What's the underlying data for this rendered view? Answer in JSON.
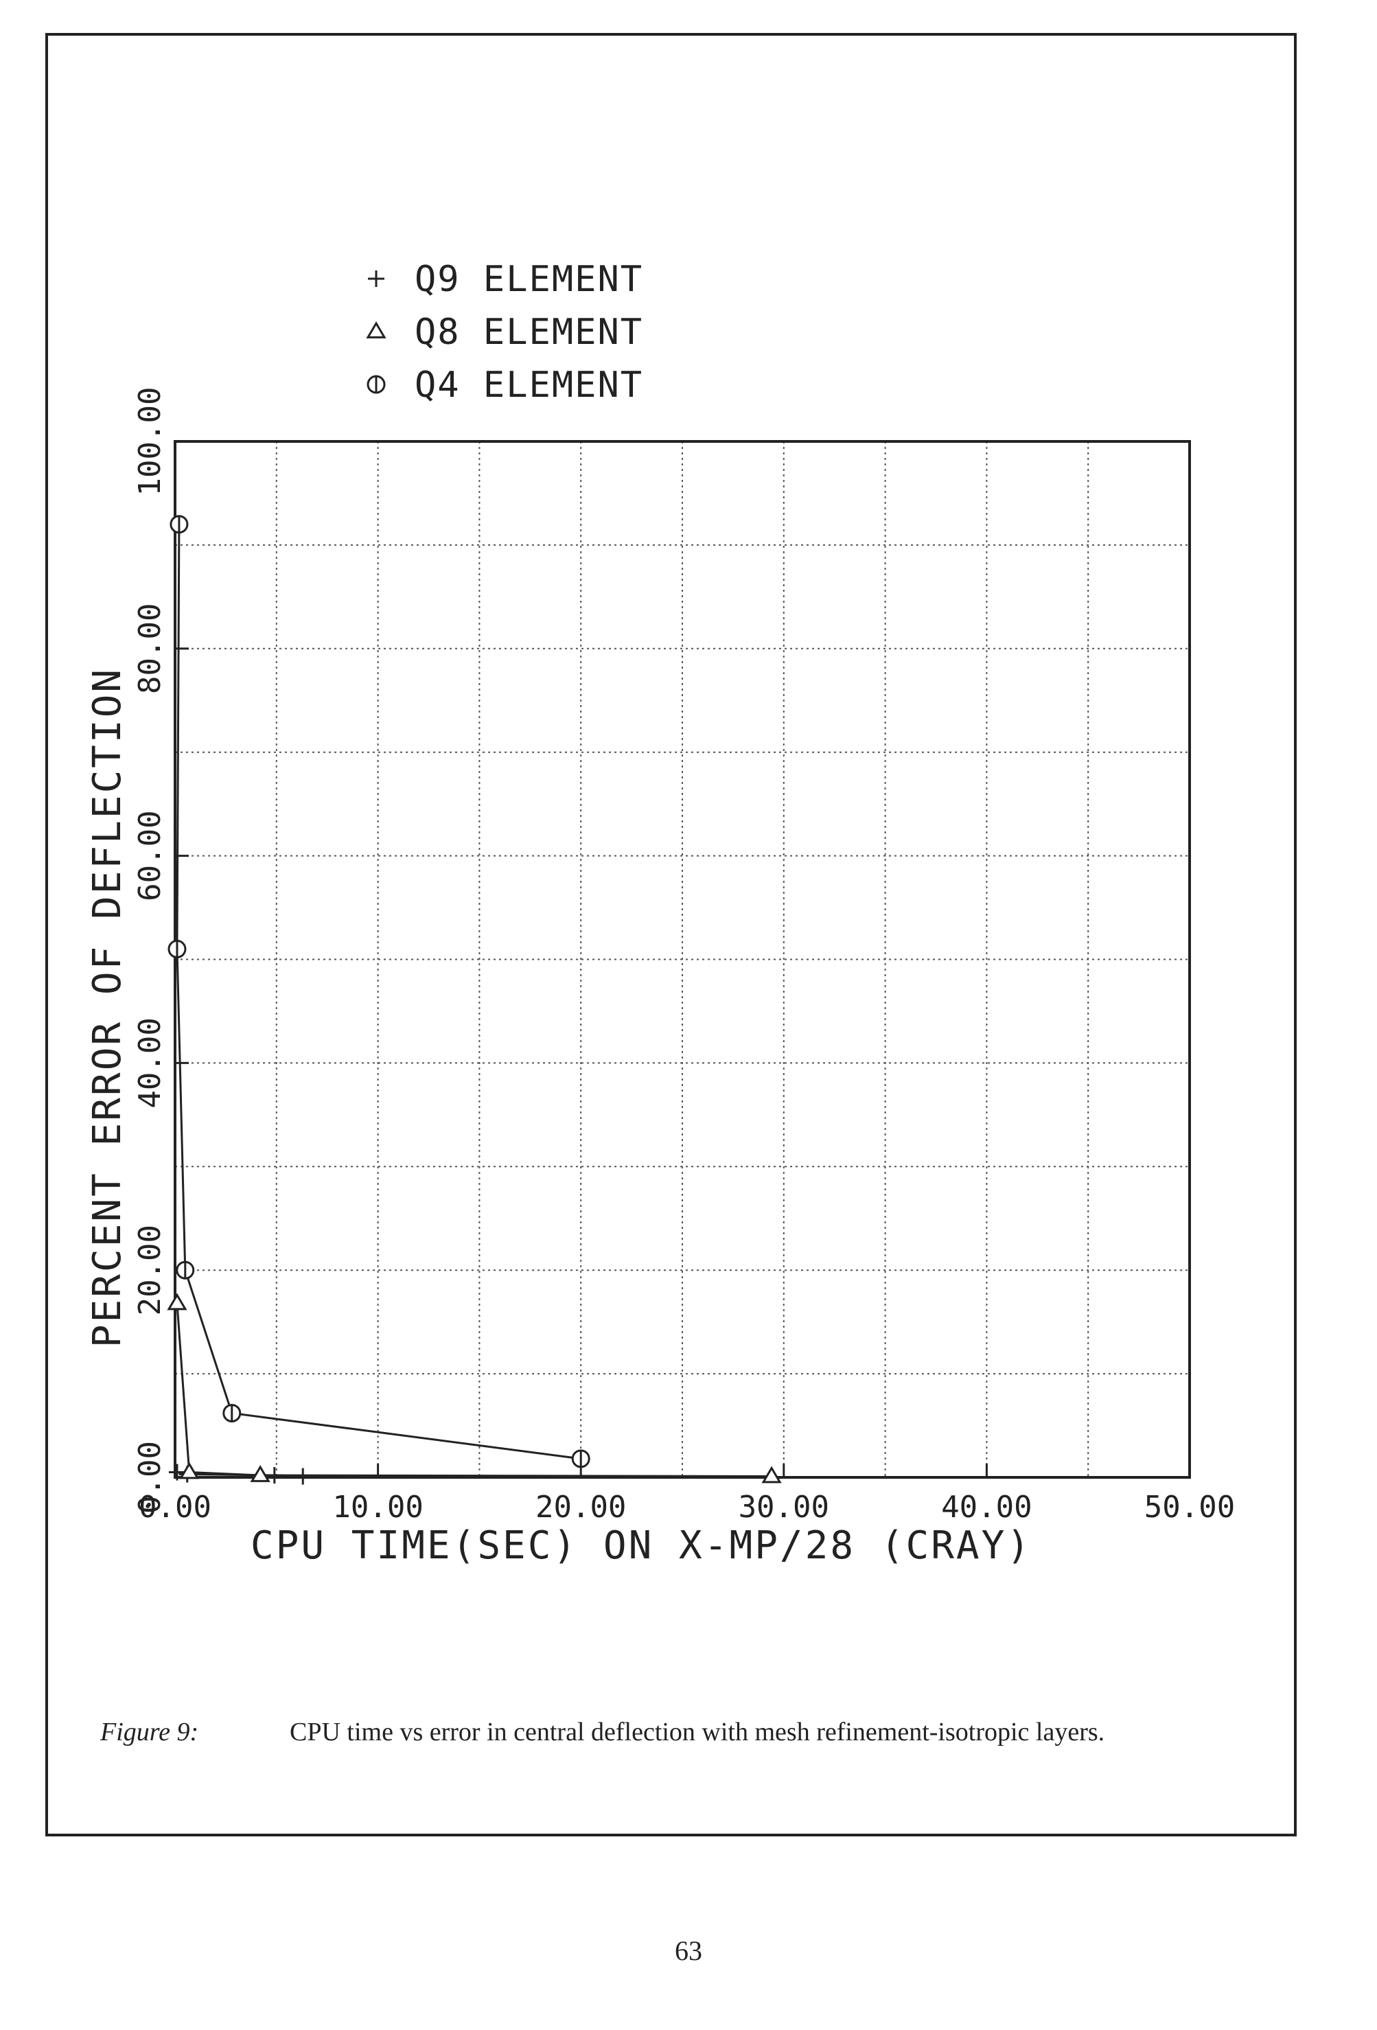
{
  "chart_data": {
    "type": "line",
    "xlabel": "CPU TIME(SEC) ON X-MP/28 (CRAY)",
    "ylabel": "PERCENT ERROR OF DEFLECTION",
    "xlim": [
      0,
      50
    ],
    "ylim": [
      0,
      100
    ],
    "x_ticks": [
      "0.00",
      "10.00",
      "20.00",
      "30.00",
      "40.00",
      "50.00"
    ],
    "y_ticks": [
      "0.00",
      "20.00",
      "40.00",
      "60.00",
      "80.00",
      "100.00"
    ],
    "grid": true,
    "legend_position": "top-left",
    "series": [
      {
        "name": "Q9 ELEMENT",
        "marker": "plus",
        "points": [
          [
            0.1,
            0.5
          ],
          [
            0.6,
            0.3
          ],
          [
            4.9,
            0.2
          ],
          [
            6.3,
            0.1
          ]
        ]
      },
      {
        "name": "Q8 ELEMENT",
        "marker": "triangle",
        "points": [
          [
            0.1,
            16.8
          ],
          [
            0.7,
            0.5
          ],
          [
            4.2,
            0.2
          ],
          [
            29.4,
            0.1
          ]
        ]
      },
      {
        "name": "Q4 ELEMENT",
        "marker": "circle",
        "points": [
          [
            0.2,
            92.0
          ],
          [
            0.1,
            51.0
          ],
          [
            0.5,
            20.0
          ],
          [
            2.8,
            6.2
          ],
          [
            20.0,
            1.8
          ]
        ]
      }
    ]
  },
  "caption": {
    "label": "Figure 9:",
    "text": "CPU time vs error in central deflection with mesh refinement-isotropic layers."
  },
  "page_number": "63"
}
